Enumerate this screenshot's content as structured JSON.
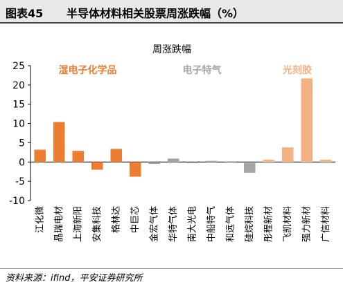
{
  "header": {
    "figure_label": "图表45",
    "title": "半导体材料相关股票周涨跌幅（%）"
  },
  "footer": {
    "source": "资料来源：ifind，平安证券研究所"
  },
  "colors": {
    "orange": "#ed7d31",
    "gray": "#a5a5a5",
    "peach": "#f4b183",
    "header_bg": "#e8e8e8"
  },
  "chart_data": {
    "type": "bar",
    "title": "周涨跌幅",
    "ylim": [
      -10,
      25
    ],
    "yticks": [
      -10,
      -5,
      0,
      5,
      10,
      15,
      20,
      25
    ],
    "grid": false,
    "categories": [
      "江化微",
      "晶瑞电材",
      "上海新阳",
      "安集科技",
      "格林达",
      "中巨芯",
      "金宏气体",
      "华特气体",
      "南大光电",
      "中船特气",
      "和远气体",
      "硅烷科技",
      "彤程新材",
      "飞凯材料",
      "强力新材",
      "广信材料"
    ],
    "values": [
      3.2,
      10.4,
      2.9,
      -2.0,
      3.4,
      -3.8,
      -0.5,
      0.9,
      -0.3,
      0.3,
      0.0,
      -2.8,
      0.6,
      3.8,
      21.7,
      0.6
    ],
    "groups": [
      {
        "name": "湿电子化学品",
        "color": "#ed7d31",
        "members": [
          "江化微",
          "晶瑞电材",
          "上海新阳",
          "安集科技",
          "格林达",
          "中巨芯"
        ]
      },
      {
        "name": "电子特气",
        "color": "#a5a5a5",
        "members": [
          "金宏气体",
          "华特气体",
          "南大光电",
          "中船特气",
          "和远气体",
          "硅烷科技"
        ]
      },
      {
        "name": "光刻胶",
        "color": "#f4b183",
        "members": [
          "彤程新材",
          "飞凯材料",
          "强力新材",
          "广信材料"
        ]
      }
    ]
  }
}
